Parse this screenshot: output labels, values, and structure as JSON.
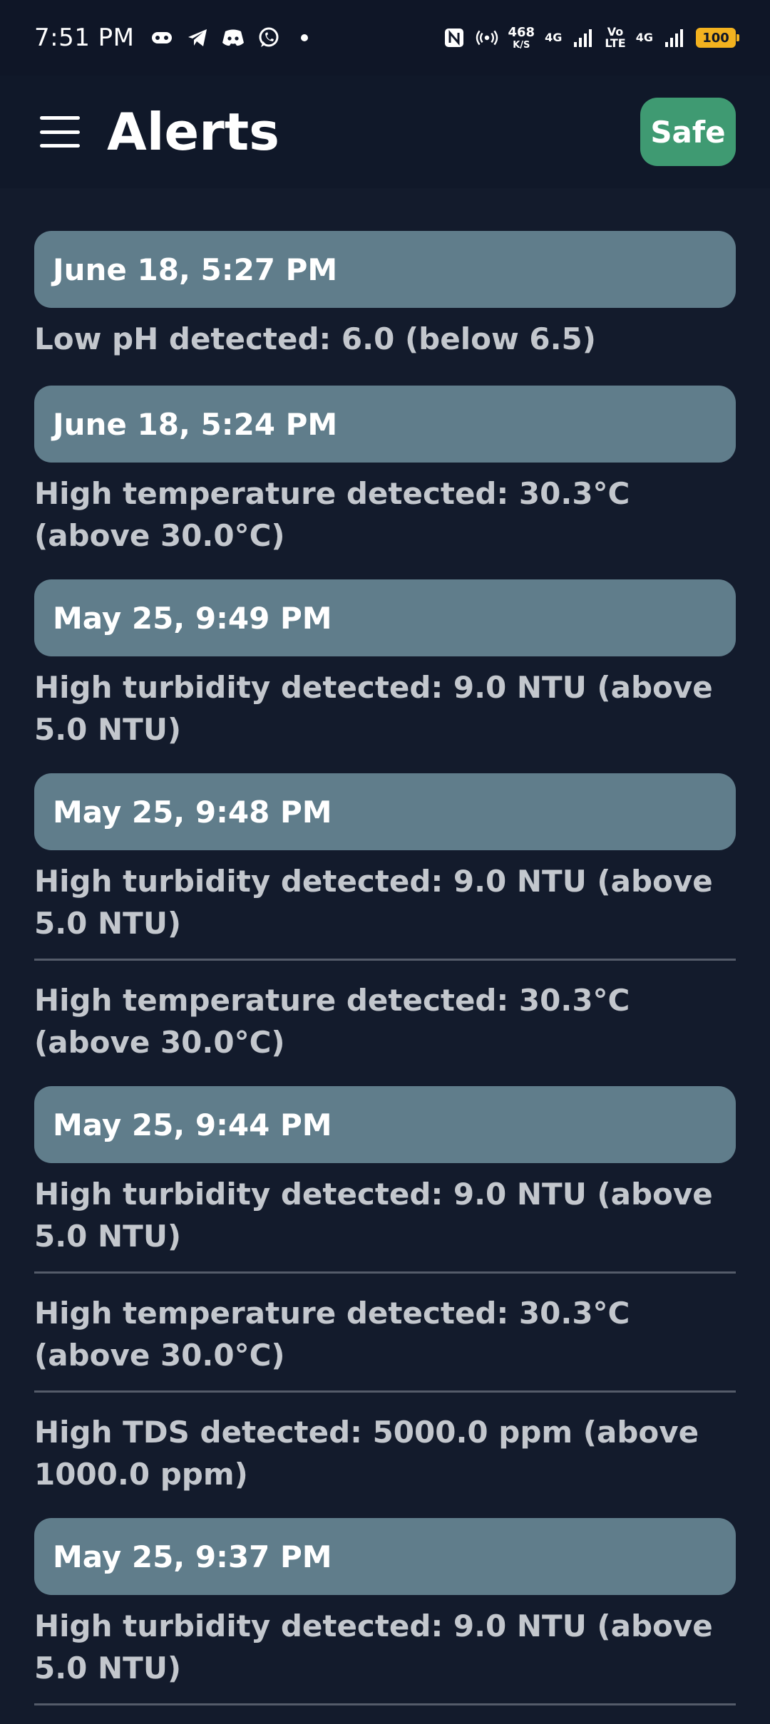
{
  "status_bar": {
    "time": "7:51 PM",
    "net_speed_value": "468",
    "net_speed_unit": "K/S",
    "network_1": "4G",
    "volte_top": "Vo",
    "volte_bottom": "LTE",
    "network_2": "4G",
    "battery": "100"
  },
  "app_bar": {
    "title": "Alerts",
    "status_label": "Safe",
    "status_color": "#3f9a72"
  },
  "alerts": [
    {
      "date": "June 18, 5:27 PM",
      "messages": [
        "Low pH detected: 6.0 (below 6.5)"
      ]
    },
    {
      "date": "June 18, 5:24 PM",
      "messages": [
        "High temperature detected: 30.3°C (above 30.0°C)"
      ]
    },
    {
      "date": "May 25, 9:49 PM",
      "messages": [
        "High turbidity detected: 9.0 NTU (above 5.0 NTU)"
      ]
    },
    {
      "date": "May 25, 9:48 PM",
      "messages": [
        "High turbidity detected: 9.0 NTU (above 5.0 NTU)",
        "High temperature detected: 30.3°C (above 30.0°C)"
      ]
    },
    {
      "date": "May 25, 9:44 PM",
      "messages": [
        "High turbidity detected: 9.0 NTU (above 5.0 NTU)",
        "High temperature detected: 30.3°C (above 30.0°C)",
        "High TDS detected: 5000.0 ppm (above 1000.0 ppm)"
      ]
    },
    {
      "date": "May 25, 9:37 PM",
      "messages": [
        "High turbidity detected: 9.0 NTU (above 5.0 NTU)"
      ]
    }
  ]
}
